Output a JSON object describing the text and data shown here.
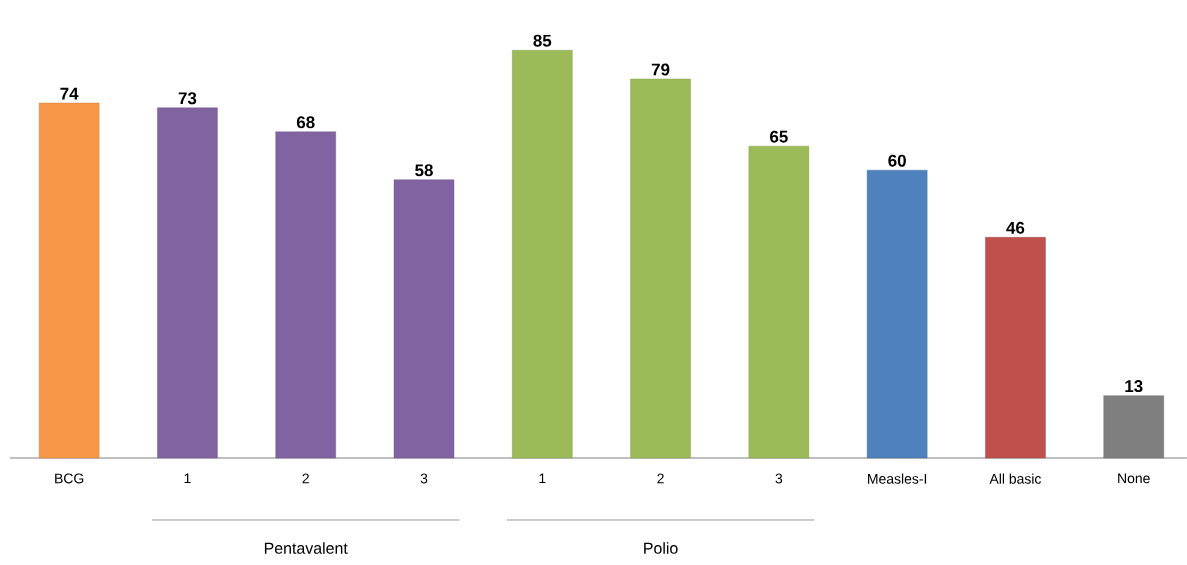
{
  "chart_data": {
    "type": "bar",
    "categories": [
      "BCG",
      "1",
      "2",
      "3",
      "1",
      "2",
      "3",
      "Measles-I",
      "All basic",
      "None"
    ],
    "values": [
      74,
      73,
      68,
      58,
      85,
      79,
      65,
      60,
      46,
      13
    ],
    "colors": [
      "#f79646",
      "#8064a2",
      "#8064a2",
      "#8064a2",
      "#9bbb59",
      "#9bbb59",
      "#9bbb59",
      "#4f81bd",
      "#c0504d",
      "#7f7f7f"
    ],
    "annotations": [
      "Pentavalent",
      "Polio"
    ],
    "data_labels": true
  }
}
